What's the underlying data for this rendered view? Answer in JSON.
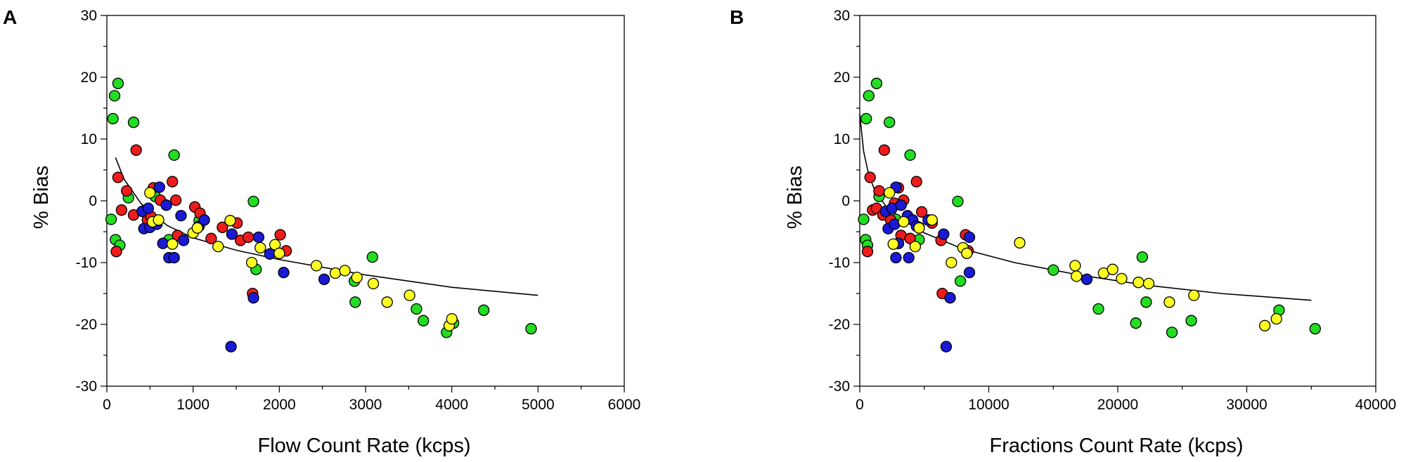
{
  "chart_data": [
    {
      "panel_label": "A",
      "type": "scatter",
      "xlabel": "Flow Count Rate (kcps)",
      "ylabel": "% Bias",
      "xlim": [
        0,
        6000
      ],
      "ylim": [
        -30,
        30
      ],
      "xticks": [
        0,
        1000,
        2000,
        3000,
        4000,
        5000,
        6000
      ],
      "yticks": [
        -30,
        -20,
        -10,
        0,
        10,
        20,
        30
      ],
      "grid": false,
      "legend": "none",
      "marker_colors": {
        "red": "#ee1c1c",
        "green": "#22dd22",
        "blue": "#1a1ad6",
        "yellow": "#ffff22"
      },
      "trend_line": {
        "type": "log",
        "x": [
          100,
          200,
          400,
          700,
          1000,
          1500,
          2000,
          3000,
          4000,
          5000
        ],
        "y": [
          7,
          3.5,
          -0.5,
          -4,
          -6,
          -8,
          -9.5,
          -12,
          -14,
          -15.3
        ]
      },
      "series": [
        {
          "color_key": "green",
          "points": [
            [
              50,
              -3
            ],
            [
              70,
              13.3
            ],
            [
              90,
              17
            ],
            [
              100,
              -6.3
            ],
            [
              130,
              19
            ],
            [
              150,
              -7.2
            ],
            [
              250,
              0.5
            ],
            [
              310,
              12.7
            ],
            [
              560,
              0.7
            ],
            [
              720,
              -6.3
            ],
            [
              780,
              7.4
            ],
            [
              1070,
              -3.2
            ],
            [
              1700,
              -0.1
            ],
            [
              1730,
              -11.1
            ],
            [
              2880,
              -16.4
            ],
            [
              2870,
              -13
            ],
            [
              3080,
              -9.1
            ],
            [
              3590,
              -17.5
            ],
            [
              3670,
              -19.4
            ],
            [
              3940,
              -21.3
            ],
            [
              4020,
              -19.8
            ],
            [
              4370,
              -17.7
            ],
            [
              4920,
              -20.7
            ]
          ]
        },
        {
          "color_key": "red",
          "points": [
            [
              110,
              -8.2
            ],
            [
              130,
              3.8
            ],
            [
              170,
              -1.5
            ],
            [
              230,
              1.6
            ],
            [
              310,
              -2.3
            ],
            [
              340,
              8.2
            ],
            [
              470,
              -3.1
            ],
            [
              510,
              -2.5
            ],
            [
              540,
              2.1
            ],
            [
              620,
              0.1
            ],
            [
              760,
              3.1
            ],
            [
              800,
              0.1
            ],
            [
              820,
              -5.6
            ],
            [
              1020,
              -1
            ],
            [
              1080,
              -2
            ],
            [
              1210,
              -6.1
            ],
            [
              1340,
              -4.3
            ],
            [
              1510,
              -3.6
            ],
            [
              1550,
              -6.4
            ],
            [
              1640,
              -5.9
            ],
            [
              1690,
              -15
            ],
            [
              2010,
              -5.5
            ],
            [
              2080,
              -8.1
            ]
          ]
        },
        {
          "color_key": "blue",
          "points": [
            [
              410,
              -1.7
            ],
            [
              430,
              -4.5
            ],
            [
              480,
              -1.2
            ],
            [
              500,
              -4.3
            ],
            [
              580,
              -3.8
            ],
            [
              610,
              2.2
            ],
            [
              650,
              -6.9
            ],
            [
              690,
              -0.7
            ],
            [
              720,
              -9.2
            ],
            [
              780,
              -9.2
            ],
            [
              860,
              -2.4
            ],
            [
              890,
              -6.4
            ],
            [
              1070,
              -4.1
            ],
            [
              1130,
              -3.1
            ],
            [
              1440,
              -23.6
            ],
            [
              1450,
              -5.4
            ],
            [
              1700,
              -15.7
            ],
            [
              1760,
              -5.9
            ],
            [
              1890,
              -8.6
            ],
            [
              2050,
              -11.6
            ],
            [
              2520,
              -12.7
            ]
          ]
        },
        {
          "color_key": "yellow",
          "points": [
            [
              500,
              1.3
            ],
            [
              530,
              -3.4
            ],
            [
              600,
              -3.1
            ],
            [
              760,
              -7
            ],
            [
              1000,
              -5.2
            ],
            [
              1050,
              -4.4
            ],
            [
              1290,
              -7.4
            ],
            [
              1430,
              -3.2
            ],
            [
              1680,
              -10
            ],
            [
              1780,
              -7.6
            ],
            [
              1950,
              -7.1
            ],
            [
              2000,
              -8.5
            ],
            [
              2430,
              -10.5
            ],
            [
              2650,
              -11.7
            ],
            [
              2760,
              -11.3
            ],
            [
              2900,
              -12.4
            ],
            [
              3090,
              -13.4
            ],
            [
              3250,
              -16.4
            ],
            [
              3510,
              -15.3
            ],
            [
              3970,
              -20.2
            ],
            [
              4000,
              -19.1
            ]
          ]
        }
      ]
    },
    {
      "panel_label": "B",
      "type": "scatter",
      "xlabel": "Fractions Count Rate (kcps)",
      "ylabel": "% Bias",
      "xlim": [
        0,
        40000
      ],
      "ylim": [
        -30,
        30
      ],
      "xticks": [
        0,
        10000,
        20000,
        30000,
        40000
      ],
      "yticks": [
        -30,
        -20,
        -10,
        0,
        10,
        20,
        30
      ],
      "grid": false,
      "legend": "none",
      "marker_colors": {
        "red": "#ee1c1c",
        "green": "#22dd22",
        "blue": "#1a1ad6",
        "yellow": "#ffff22"
      },
      "trend_line": {
        "type": "log",
        "x": [
          0,
          300,
          700,
          1200,
          2000,
          3000,
          5000,
          8000,
          12000,
          17000,
          22000,
          28000,
          35000
        ],
        "y": [
          14,
          8,
          4.2,
          1.5,
          -0.8,
          -2.5,
          -5.2,
          -7.8,
          -10,
          -12,
          -13.6,
          -15,
          -16.1
        ]
      },
      "series": [
        {
          "color_key": "green",
          "points": [
            [
              300,
              -3
            ],
            [
              450,
              -6.3
            ],
            [
              500,
              13.3
            ],
            [
              600,
              -7.2
            ],
            [
              700,
              17
            ],
            [
              1300,
              19
            ],
            [
              1500,
              0.7
            ],
            [
              2300,
              12.7
            ],
            [
              2800,
              -3
            ],
            [
              3900,
              7.4
            ],
            [
              4600,
              -6.3
            ],
            [
              7600,
              -0.1
            ],
            [
              7800,
              -13
            ],
            [
              15000,
              -11.2
            ],
            [
              18500,
              -17.5
            ],
            [
              21400,
              -19.8
            ],
            [
              21900,
              -9.1
            ],
            [
              22200,
              -16.4
            ],
            [
              24200,
              -21.3
            ],
            [
              25700,
              -19.4
            ],
            [
              32500,
              -17.7
            ],
            [
              35300,
              -20.7
            ]
          ]
        },
        {
          "color_key": "red",
          "points": [
            [
              600,
              -8.2
            ],
            [
              800,
              3.8
            ],
            [
              1000,
              -1.5
            ],
            [
              1300,
              -1.2
            ],
            [
              1500,
              1.6
            ],
            [
              1800,
              -2.3
            ],
            [
              1900,
              8.2
            ],
            [
              2400,
              -3.1
            ],
            [
              2700,
              -0.4
            ],
            [
              3000,
              2.1
            ],
            [
              3200,
              -5.6
            ],
            [
              3400,
              0.1
            ],
            [
              3900,
              -6.1
            ],
            [
              4400,
              3.1
            ],
            [
              4600,
              -4.3
            ],
            [
              4800,
              -1.8
            ],
            [
              5600,
              -3.6
            ],
            [
              6300,
              -6.4
            ],
            [
              6400,
              -15
            ],
            [
              8200,
              -5.5
            ],
            [
              8400,
              -8.1
            ]
          ]
        },
        {
          "color_key": "blue",
          "points": [
            [
              2000,
              -1.7
            ],
            [
              2200,
              -4.5
            ],
            [
              2500,
              -1.2
            ],
            [
              2700,
              -3.8
            ],
            [
              2800,
              2.2
            ],
            [
              2800,
              -9.2
            ],
            [
              3000,
              -6.9
            ],
            [
              3200,
              -0.7
            ],
            [
              3700,
              -2.4
            ],
            [
              3800,
              -9.2
            ],
            [
              4100,
              -3.1
            ],
            [
              4400,
              -4.1
            ],
            [
              5300,
              -3.1
            ],
            [
              6500,
              -5.4
            ],
            [
              6700,
              -23.6
            ],
            [
              7000,
              -15.7
            ],
            [
              8500,
              -5.9
            ],
            [
              8500,
              -11.6
            ],
            [
              17600,
              -12.7
            ]
          ]
        },
        {
          "color_key": "yellow",
          "points": [
            [
              2300,
              1.3
            ],
            [
              2600,
              -7
            ],
            [
              3400,
              -3.4
            ],
            [
              4300,
              -7.4
            ],
            [
              4600,
              -4.4
            ],
            [
              5600,
              -3.1
            ],
            [
              7100,
              -10
            ],
            [
              8000,
              -7.6
            ],
            [
              8300,
              -8.5
            ],
            [
              12400,
              -6.8
            ],
            [
              16700,
              -10.5
            ],
            [
              16800,
              -12.2
            ],
            [
              18900,
              -11.7
            ],
            [
              19600,
              -11.1
            ],
            [
              20300,
              -12.6
            ],
            [
              21600,
              -13.2
            ],
            [
              22400,
              -13.4
            ],
            [
              24000,
              -16.4
            ],
            [
              25900,
              -15.3
            ],
            [
              31400,
              -20.2
            ],
            [
              32300,
              -19.1
            ]
          ]
        }
      ]
    }
  ]
}
